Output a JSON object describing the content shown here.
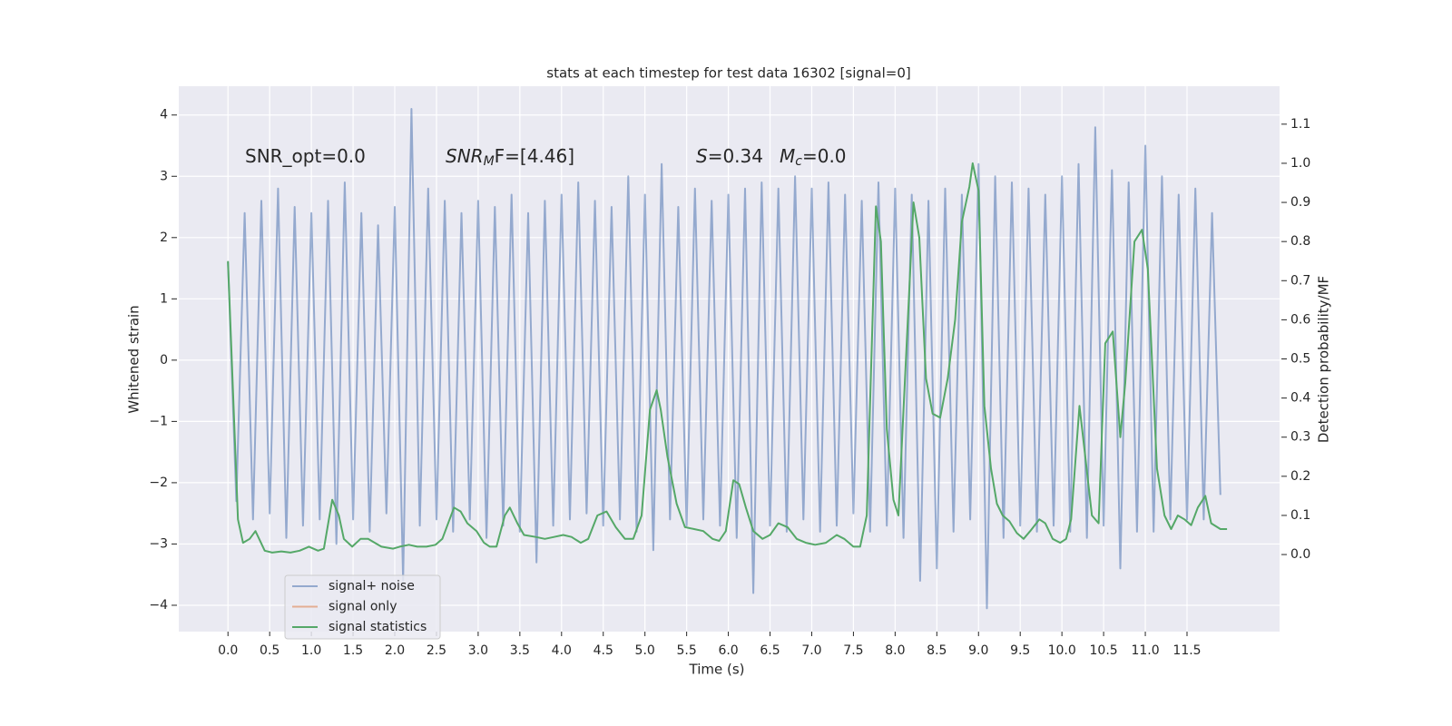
{
  "chart_data": {
    "type": "line",
    "title": "stats at each timestep for test data 16302 [signal=0]",
    "xlabel": "Time (s)",
    "ylabel": "Whitened strain",
    "y2label": "Detection probability/MF",
    "annotations": [
      {
        "main": "SNR_opt=0.0"
      },
      {
        "main": "SNR",
        "sub": "M",
        "rest": "F=[4.46]"
      },
      {
        "main": "S",
        "rest": "=0.34"
      },
      {
        "main": "M",
        "sub": "c",
        "rest": "=0.0"
      }
    ],
    "xlim": [
      -0.59,
      12.61
    ],
    "ylim": [
      -4.43,
      4.47
    ],
    "y2lim": [
      -0.197,
      1.197
    ],
    "xticks": [
      {
        "value": 0,
        "label": "0.0"
      },
      {
        "value": 0.5,
        "label": "0.5"
      },
      {
        "value": 1,
        "label": "1.0"
      },
      {
        "value": 1.5,
        "label": "1.5"
      },
      {
        "value": 2,
        "label": "2.0"
      },
      {
        "value": 2.5,
        "label": "2.5"
      },
      {
        "value": 3,
        "label": "3.0"
      },
      {
        "value": 3.5,
        "label": "3.5"
      },
      {
        "value": 4,
        "label": "4.0"
      },
      {
        "value": 4.5,
        "label": "4.5"
      },
      {
        "value": 5,
        "label": "5.0"
      },
      {
        "value": 5.5,
        "label": "5.5"
      },
      {
        "value": 6,
        "label": "6.0"
      },
      {
        "value": 6.5,
        "label": "6.5"
      },
      {
        "value": 7,
        "label": "7.0"
      },
      {
        "value": 7.5,
        "label": "7.5"
      },
      {
        "value": 8,
        "label": "8.0"
      },
      {
        "value": 8.5,
        "label": "8.5"
      },
      {
        "value": 9,
        "label": "9.0"
      },
      {
        "value": 9.5,
        "label": "9.5"
      },
      {
        "value": 10,
        "label": "10.0"
      },
      {
        "value": 10.5,
        "label": "10.5"
      },
      {
        "value": 11,
        "label": "11.0"
      },
      {
        "value": 11.5,
        "label": "11.5"
      }
    ],
    "yticks": [
      {
        "value": -4,
        "label": "−4"
      },
      {
        "value": -3,
        "label": "−3"
      },
      {
        "value": -2,
        "label": "−2"
      },
      {
        "value": -1,
        "label": "−1"
      },
      0,
      1,
      2,
      3,
      4
    ],
    "y2ticks": [
      {
        "value": 0,
        "label": "0.0"
      },
      {
        "value": 0.1,
        "label": "0.1"
      },
      {
        "value": 0.2,
        "label": "0.2"
      },
      {
        "value": 0.3,
        "label": "0.3"
      },
      {
        "value": 0.4,
        "label": "0.4"
      },
      {
        "value": 0.5,
        "label": "0.5"
      },
      {
        "value": 0.6,
        "label": "0.6"
      },
      {
        "value": 0.7,
        "label": "0.7"
      },
      {
        "value": 0.8,
        "label": "0.8"
      },
      {
        "value": 0.9,
        "label": "0.9"
      },
      {
        "value": 1,
        "label": "1.0"
      },
      {
        "value": 1.1,
        "label": "1.1"
      }
    ],
    "grid": true,
    "legend": "lower left",
    "series": [
      {
        "name": "signal+ noise",
        "color": "#4c72b0",
        "x": [
          0,
          0.1,
          0.2,
          0.3,
          0.4,
          0.5,
          0.6,
          0.7,
          0.8,
          0.9,
          1,
          1.1,
          1.2,
          1.3,
          1.4,
          1.5,
          1.6,
          1.7,
          1.8,
          1.9,
          2,
          2.1,
          2.2,
          2.3,
          2.4,
          2.5,
          2.6,
          2.7,
          2.8,
          2.9,
          3,
          3.1,
          3.2,
          3.3,
          3.4,
          3.5,
          3.6,
          3.7,
          3.8,
          3.9,
          4,
          4.1,
          4.2,
          4.3,
          4.4,
          4.5,
          4.6,
          4.7,
          4.8,
          4.9,
          5,
          5.1,
          5.2,
          5.3,
          5.4,
          5.5,
          5.6,
          5.7,
          5.8,
          5.9,
          6,
          6.1,
          6.2,
          6.3,
          6.4,
          6.5,
          6.6,
          6.7,
          6.8,
          6.9,
          7,
          7.1,
          7.2,
          7.3,
          7.4,
          7.5,
          7.6,
          7.7,
          7.8,
          7.9,
          8,
          8.1,
          8.2,
          8.3,
          8.4,
          8.5,
          8.6,
          8.7,
          8.8,
          8.9,
          9,
          9.1,
          9.2,
          9.3,
          9.4,
          9.5,
          9.6,
          9.7,
          9.8,
          9.9,
          10,
          10.1,
          10.2,
          10.3,
          10.4,
          10.5,
          10.6,
          10.7,
          10.8,
          10.9,
          11,
          11.1,
          11.2,
          11.3,
          11.4,
          11.5,
          11.6,
          11.7,
          11.8,
          11.9
        ],
        "values": [
          1.6,
          -2.3,
          2.4,
          -2.6,
          2.6,
          -2.5,
          2.8,
          -2.9,
          2.5,
          -2.7,
          2.4,
          -2.6,
          2.6,
          -3.0,
          2.9,
          -2.6,
          2.4,
          -2.8,
          2.2,
          -2.5,
          2.5,
          -3.6,
          4.1,
          -2.7,
          2.8,
          -2.6,
          2.6,
          -2.8,
          2.4,
          -2.6,
          2.6,
          -2.9,
          2.5,
          -2.7,
          2.7,
          -2.8,
          2.4,
          -3.3,
          2.6,
          -2.7,
          2.7,
          -2.6,
          2.9,
          -2.5,
          2.6,
          -2.7,
          2.5,
          -2.6,
          3.0,
          -2.8,
          2.7,
          -3.1,
          3.2,
          -2.6,
          2.5,
          -2.7,
          2.8,
          -2.6,
          2.6,
          -2.7,
          2.7,
          -2.9,
          2.8,
          -3.8,
          2.9,
          -2.7,
          2.8,
          -2.8,
          3.0,
          -2.6,
          2.8,
          -2.8,
          2.9,
          -2.7,
          2.7,
          -2.5,
          2.6,
          -2.8,
          2.9,
          -2.7,
          2.8,
          -2.9,
          2.7,
          -3.6,
          2.6,
          -3.4,
          2.8,
          -2.8,
          2.7,
          -2.6,
          3.2,
          -4.05,
          3.0,
          -2.9,
          2.9,
          -2.7,
          2.8,
          -2.8,
          2.7,
          -2.7,
          3.0,
          -2.8,
          3.2,
          -2.9,
          3.8,
          -2.7,
          3.1,
          -3.4,
          2.9,
          -2.8,
          3.5,
          -2.8,
          3.0,
          -2.6,
          2.7,
          -2.6,
          2.8,
          -2.6,
          2.4,
          -2.2
        ]
      },
      {
        "name": "signal only",
        "color": "#dd8452",
        "x": [],
        "values": []
      },
      {
        "name": "signal statistics",
        "color": "#55a868",
        "axis": "y2",
        "x": [
          0,
          0.12,
          0.18,
          0.26,
          0.33,
          0.44,
          0.53,
          0.64,
          0.75,
          0.86,
          0.97,
          1.08,
          1.15,
          1.25,
          1.33,
          1.39,
          1.49,
          1.59,
          1.68,
          1.76,
          1.84,
          1.98,
          2.06,
          2.17,
          2.27,
          2.38,
          2.49,
          2.57,
          2.71,
          2.79,
          2.87,
          2.98,
          3.07,
          3.14,
          3.22,
          3.32,
          3.38,
          3.47,
          3.55,
          3.69,
          3.8,
          3.91,
          4.02,
          4.12,
          4.23,
          4.32,
          4.43,
          4.54,
          4.65,
          4.76,
          4.86,
          4.96,
          5.06,
          5.14,
          5.19,
          5.27,
          5.38,
          5.48,
          5.59,
          5.7,
          5.81,
          5.89,
          5.97,
          6.06,
          6.13,
          6.21,
          6.3,
          6.41,
          6.5,
          6.6,
          6.71,
          6.82,
          6.93,
          7.04,
          7.17,
          7.3,
          7.39,
          7.5,
          7.58,
          7.66,
          7.77,
          7.83,
          7.9,
          7.98,
          8.04,
          8.13,
          8.22,
          8.29,
          8.37,
          8.45,
          8.54,
          8.63,
          8.72,
          8.8,
          8.89,
          8.93,
          9,
          9.07,
          9.15,
          9.22,
          9.29,
          9.37,
          9.46,
          9.54,
          9.62,
          9.73,
          9.8,
          9.89,
          9.98,
          10.05,
          10.11,
          10.21,
          10.28,
          10.36,
          10.44,
          10.52,
          10.61,
          10.7,
          10.76,
          10.87,
          10.96,
          11.03,
          11.14,
          11.23,
          11.31,
          11.39,
          11.47,
          11.55,
          11.63,
          11.72,
          11.79,
          11.9,
          11.98
        ],
        "values": [
          0.75,
          0.09,
          0.03,
          0.04,
          0.06,
          0.01,
          0.005,
          0.008,
          0.005,
          0.01,
          0.02,
          0.01,
          0.015,
          0.14,
          0.1,
          0.04,
          0.02,
          0.04,
          0.04,
          0.03,
          0.02,
          0.015,
          0.02,
          0.025,
          0.02,
          0.02,
          0.025,
          0.04,
          0.12,
          0.11,
          0.08,
          0.06,
          0.03,
          0.02,
          0.02,
          0.1,
          0.12,
          0.08,
          0.05,
          0.045,
          0.04,
          0.045,
          0.05,
          0.045,
          0.03,
          0.04,
          0.1,
          0.11,
          0.07,
          0.04,
          0.04,
          0.1,
          0.37,
          0.42,
          0.37,
          0.25,
          0.13,
          0.07,
          0.065,
          0.06,
          0.04,
          0.035,
          0.06,
          0.19,
          0.18,
          0.12,
          0.06,
          0.04,
          0.05,
          0.08,
          0.07,
          0.04,
          0.03,
          0.025,
          0.03,
          0.05,
          0.04,
          0.02,
          0.02,
          0.1,
          0.89,
          0.8,
          0.32,
          0.14,
          0.1,
          0.5,
          0.9,
          0.81,
          0.45,
          0.36,
          0.35,
          0.45,
          0.6,
          0.85,
          0.94,
          1.0,
          0.93,
          0.38,
          0.22,
          0.13,
          0.1,
          0.085,
          0.055,
          0.04,
          0.06,
          0.09,
          0.08,
          0.04,
          0.03,
          0.04,
          0.09,
          0.38,
          0.25,
          0.1,
          0.08,
          0.54,
          0.57,
          0.3,
          0.44,
          0.8,
          0.83,
          0.73,
          0.22,
          0.1,
          0.065,
          0.1,
          0.09,
          0.075,
          0.12,
          0.15,
          0.08,
          0.065,
          0.065
        ]
      }
    ]
  }
}
